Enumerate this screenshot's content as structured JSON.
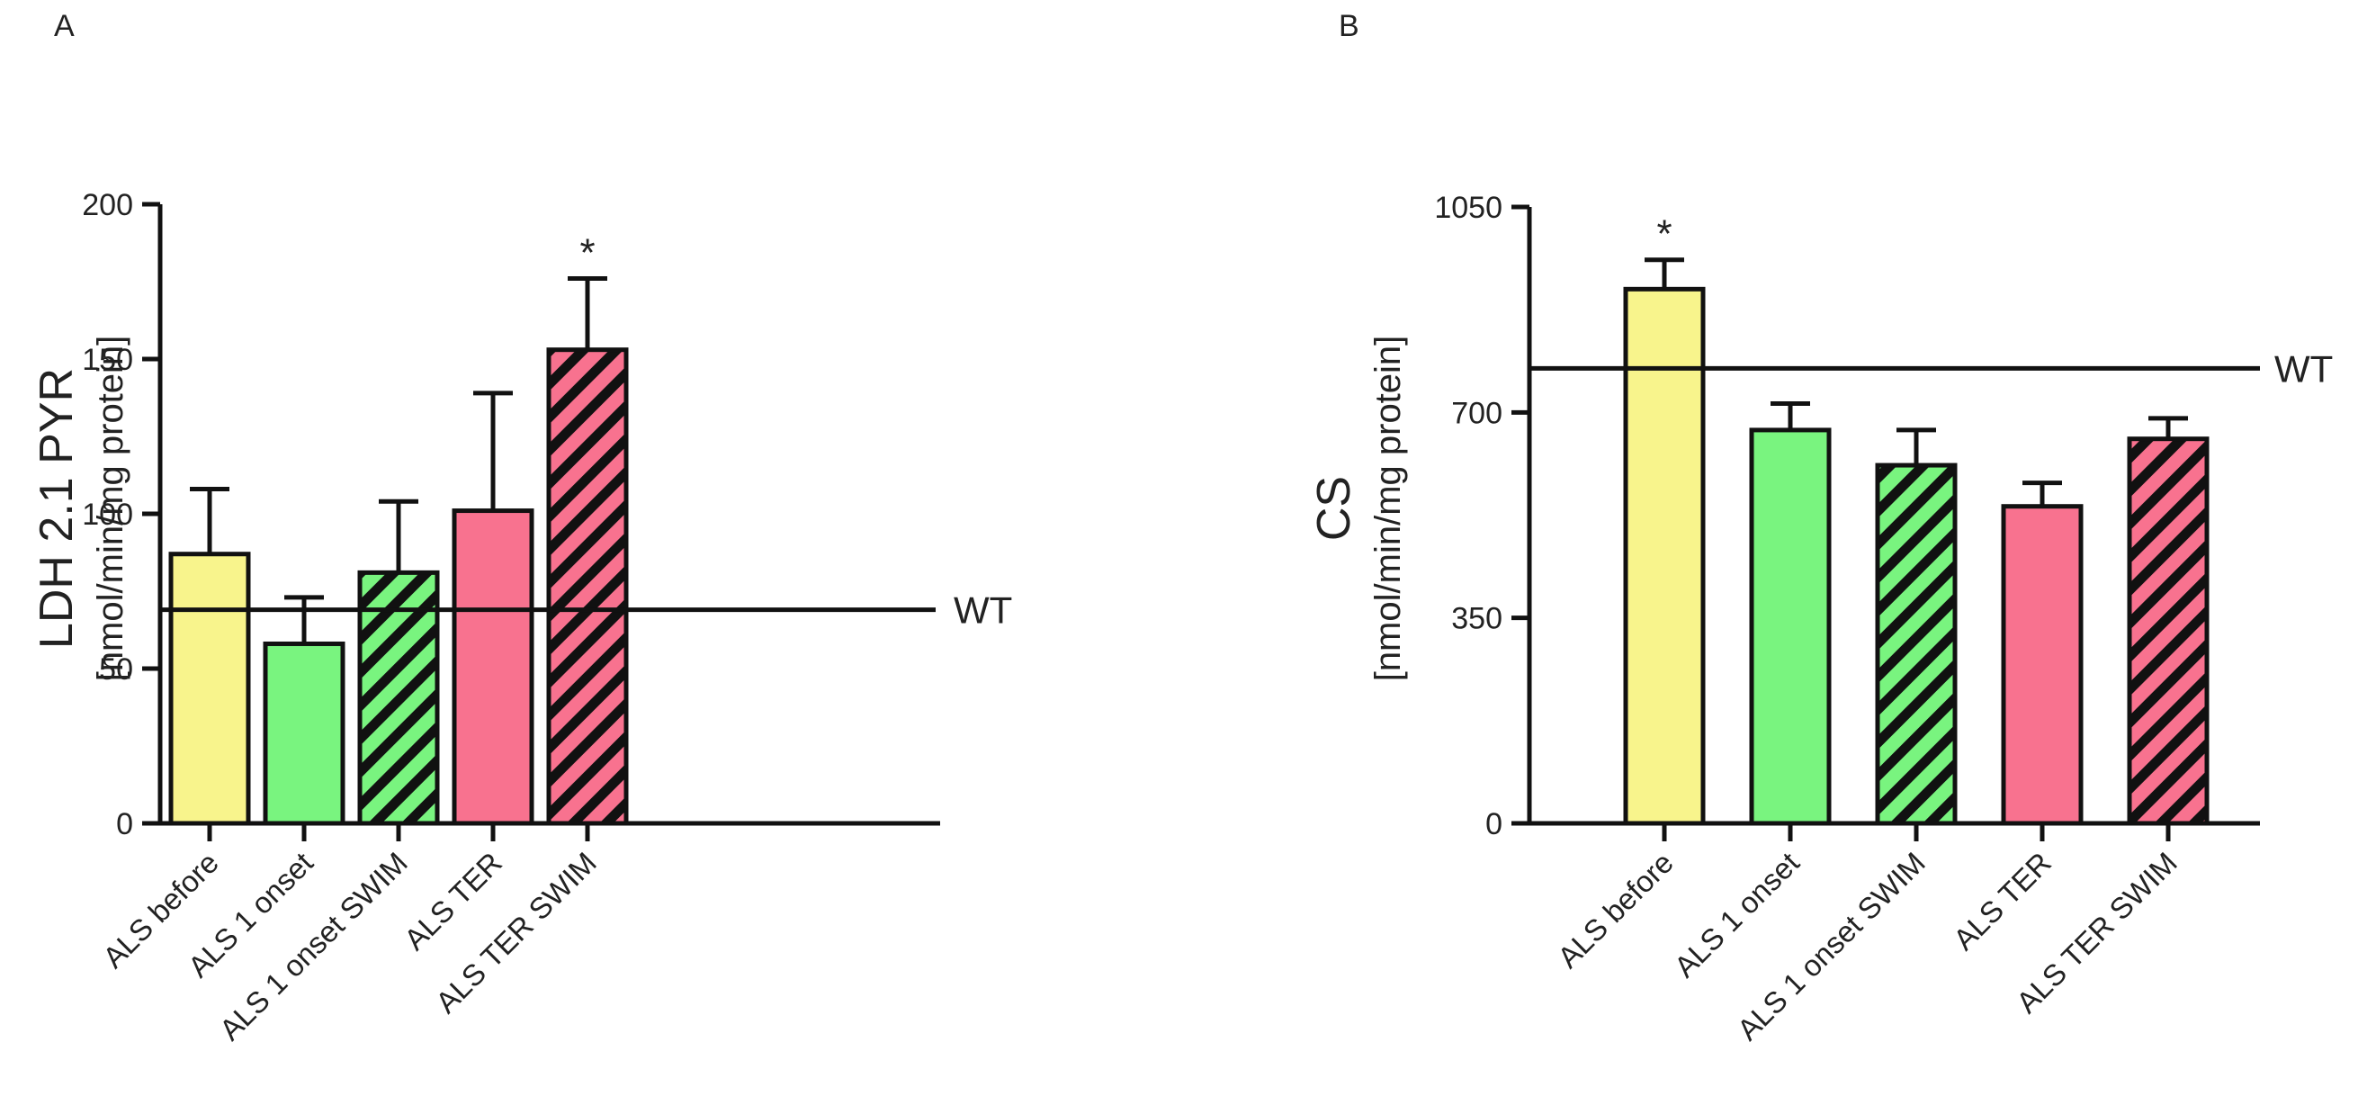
{
  "chart_data": [
    {
      "panel": "A",
      "type": "bar",
      "categories": [
        "ALS before",
        "ALS 1 onset",
        "ALS 1 onset SWIM",
        "ALS TER",
        "ALS TER SWIM"
      ],
      "values": [
        87,
        58,
        81,
        101,
        153
      ],
      "errors": [
        21,
        15,
        23,
        38,
        23
      ],
      "fills": [
        "#f8f48c",
        "#79f47f",
        "#79f47f",
        "#f8728f",
        "#f8728f"
      ],
      "hatched": [
        false,
        false,
        true,
        false,
        true
      ],
      "significance": [
        "",
        "",
        "",
        "",
        "*"
      ],
      "ylabel": "LDH 2.1 PYR",
      "ylabel_unit": "[nmol/min/mg protein]",
      "ylim": [
        0,
        200
      ],
      "yticks": [
        0,
        50,
        100,
        150,
        200
      ],
      "reference_line": {
        "label": "WT",
        "value": 69
      },
      "grid": false
    },
    {
      "panel": "B",
      "type": "bar",
      "categories": [
        "ALS before",
        "ALS 1 onset",
        "ALS 1 onset SWIM",
        "ALS TER",
        "ALS TER SWIM"
      ],
      "values": [
        910,
        670,
        610,
        540,
        655
      ],
      "errors": [
        50,
        45,
        60,
        40,
        35
      ],
      "fills": [
        "#f8f48c",
        "#79f47f",
        "#79f47f",
        "#f8728f",
        "#f8728f"
      ],
      "hatched": [
        false,
        false,
        true,
        false,
        true
      ],
      "significance": [
        "*",
        "",
        "",
        "",
        ""
      ],
      "ylabel": "CS",
      "ylabel_unit": "[nmol/min/mg protein]",
      "ylim": [
        0,
        1050
      ],
      "yticks": [
        0,
        350,
        700,
        1050
      ],
      "reference_line": {
        "label": "WT",
        "value": 775
      },
      "grid": false
    }
  ]
}
